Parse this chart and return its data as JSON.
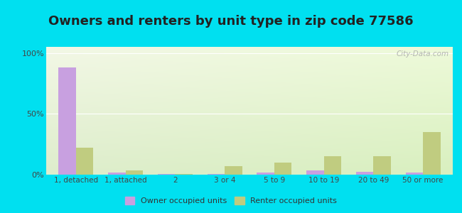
{
  "title": "Owners and renters by unit type in zip code 77586",
  "categories": [
    "1, detached",
    "1, attached",
    "2",
    "3 or 4",
    "5 to 9",
    "10 to 19",
    "20 to 49",
    "50 or more"
  ],
  "owner_values": [
    88,
    2,
    0.5,
    0.5,
    2,
    3.5,
    2.5,
    2
  ],
  "renter_values": [
    22,
    3.5,
    0.5,
    7,
    10,
    15,
    15,
    35
  ],
  "owner_color": "#c8a0e0",
  "renter_color": "#c0cc80",
  "background_outer": "#00e0f0",
  "title_fontsize": 13,
  "ylabel_ticks": [
    "0%",
    "50%",
    "100%"
  ],
  "ytick_values": [
    0,
    50,
    100
  ],
  "ylim": [
    0,
    105
  ],
  "bar_width": 0.35,
  "legend_owner": "Owner occupied units",
  "legend_renter": "Renter occupied units",
  "watermark": "City-Data.com"
}
